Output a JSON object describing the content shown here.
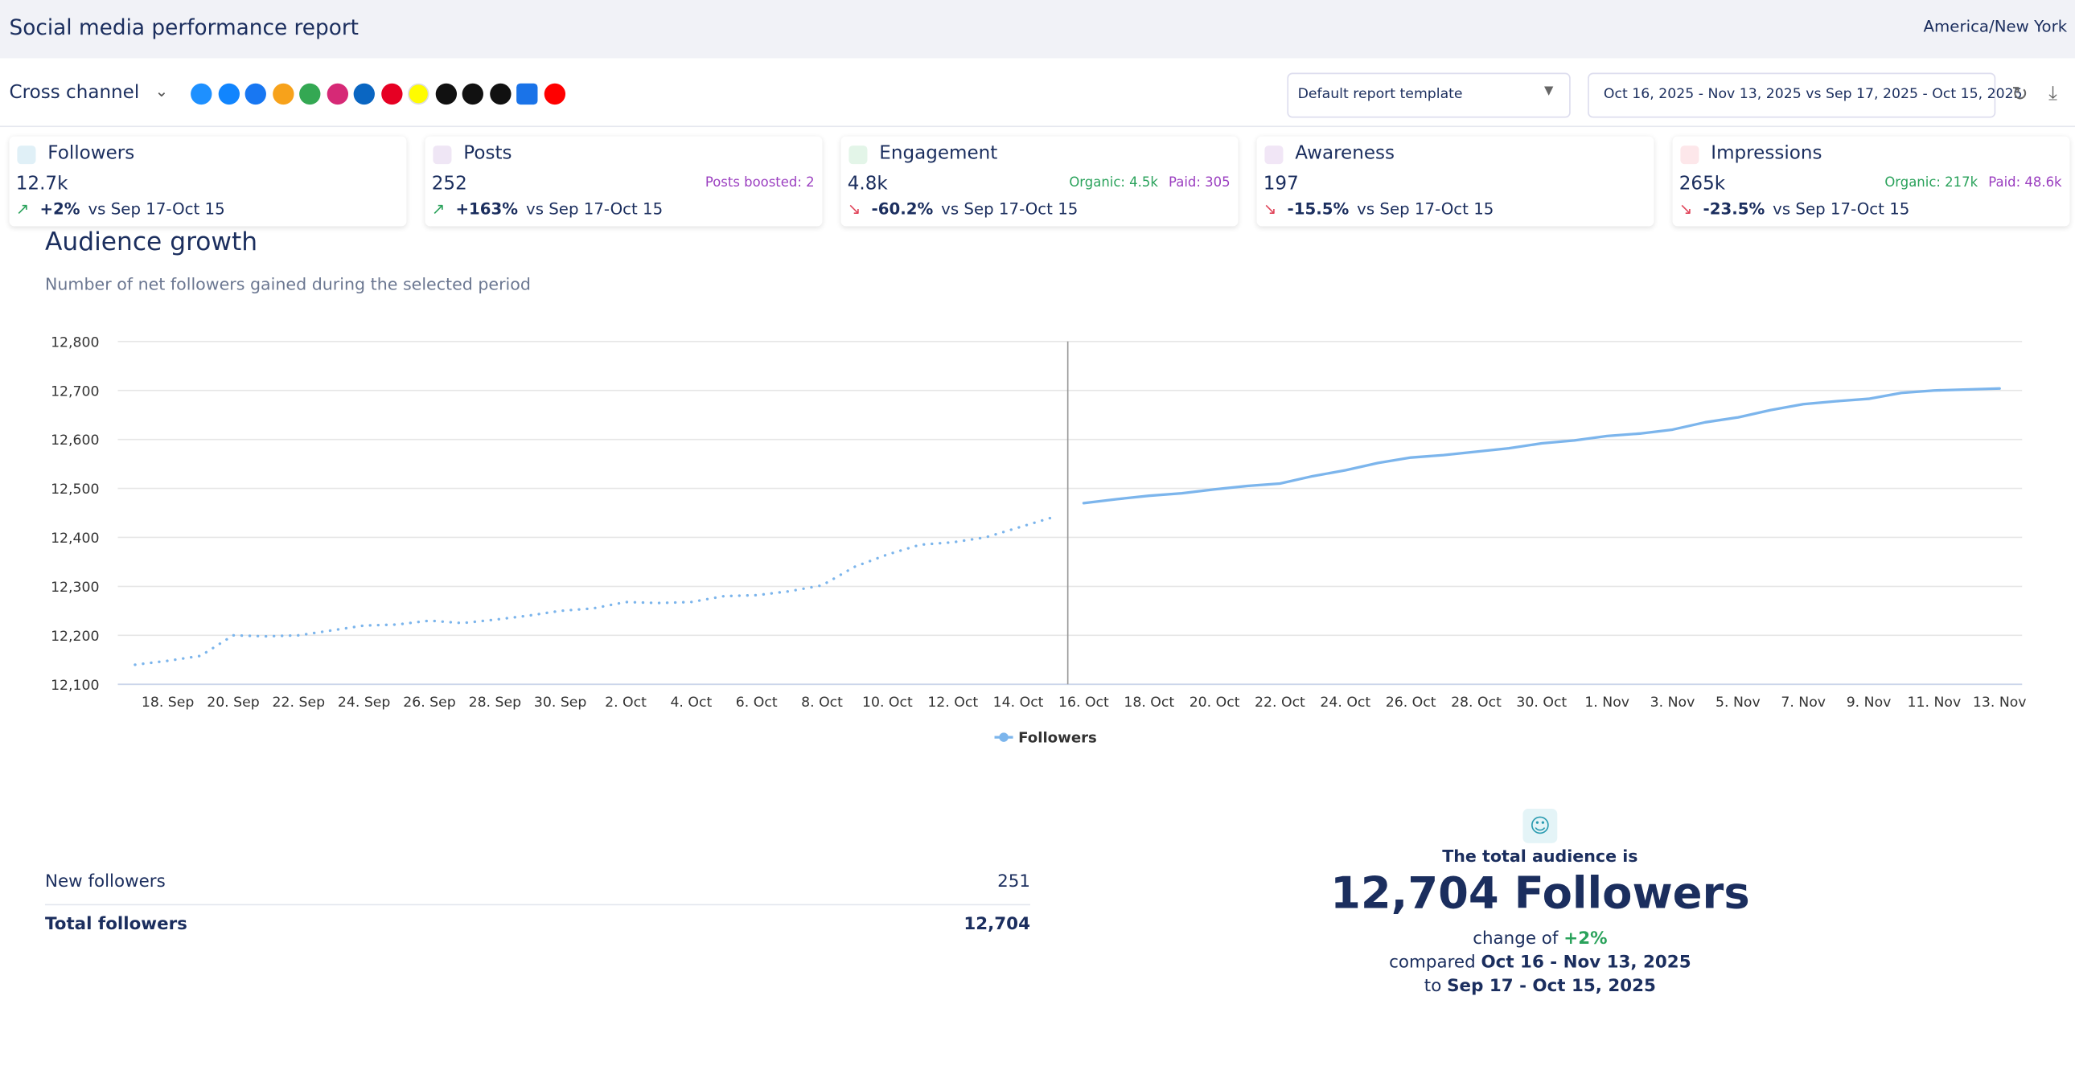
{
  "header": {
    "title": "Social media performance report",
    "timezone": "America/New York"
  },
  "toolbar": {
    "channel": "Cross channel",
    "template": "Default report template",
    "date_range": "Oct 16, 2025 - Nov 13, 2025 vs Sep 17, 2025 - Oct 15, 2025"
  },
  "kpis": [
    {
      "label": "Followers",
      "value": "12.7k",
      "change": "+2%",
      "comparison": "vs Sep 17-Oct 15",
      "extras": []
    },
    {
      "label": "Posts",
      "value": "252",
      "change": "+163%",
      "comparison": "vs Sep 17-Oct 15",
      "extras": [
        "Posts boosted: 2"
      ]
    },
    {
      "label": "Engagement",
      "value": "4.8k",
      "change": "-60.2%",
      "comparison": "vs Sep 17-Oct 15",
      "extras": [
        "Organic: 4.5k",
        "Paid: 305"
      ]
    },
    {
      "label": "Awareness",
      "value": "197",
      "change": "-15.5%",
      "comparison": "vs Sep 17-Oct 15",
      "extras": []
    },
    {
      "label": "Impressions",
      "value": "265k",
      "change": "-23.5%",
      "comparison": "vs Sep 17-Oct 15",
      "extras": [
        "Organic: 217k",
        "Paid: 48.6k"
      ]
    }
  ],
  "chart_data": {
    "type": "line",
    "title": "Audience growth",
    "subtitle": "Number of net followers gained during the selected period",
    "categories": [
      null,
      "18. Sep",
      null,
      "20. Sep",
      null,
      "22. Sep",
      null,
      "24. Sep",
      null,
      "26. Sep",
      null,
      "28. Sep",
      null,
      "30. Sep",
      null,
      "2. Oct",
      null,
      "4. Oct",
      null,
      "6. Oct",
      null,
      "8. Oct",
      null,
      "10. Oct",
      null,
      "12. Oct",
      null,
      "14. Oct",
      null,
      "16. Oct",
      null,
      "18. Oct",
      null,
      "20. Oct",
      null,
      "22. Oct",
      null,
      "24. Oct",
      null,
      "26. Oct",
      null,
      "28. Oct",
      null,
      "30. Oct",
      null,
      "1. Nov",
      null,
      "3. Nov",
      null,
      "5. Nov",
      null,
      "7. Nov",
      null,
      "9. Nov",
      null,
      "11. Nov",
      null,
      "13. Nov"
    ],
    "series": [
      {
        "name": "Followers",
        "color": "#7cb5ec",
        "values": [
          null,
          null,
          null,
          null,
          null,
          null,
          null,
          null,
          null,
          null,
          null,
          null,
          null,
          null,
          null,
          null,
          null,
          null,
          null,
          null,
          null,
          null,
          null,
          null,
          null,
          null,
          null,
          null,
          null,
          12470,
          12478,
          12485,
          12490,
          12498,
          12505,
          12510,
          12525,
          12537,
          12552,
          12563,
          12568,
          12575,
          12582,
          12592,
          12598,
          12607,
          12612,
          12620,
          12635,
          12645,
          12660,
          12672,
          12678,
          12683,
          12695,
          12700,
          12702,
          12704
        ]
      },
      {
        "color": "#7cb5ec",
        "dash": "dotted",
        "values": [
          12140,
          12148,
          12158,
          12200,
          12198,
          12200,
          12210,
          12220,
          12222,
          12230,
          12225,
          12232,
          12240,
          12250,
          12255,
          12268,
          12266,
          12268,
          12280,
          12282,
          12290,
          12302,
          12340,
          12365,
          12385,
          12390,
          12400,
          12420,
          12440,
          null,
          null,
          null,
          null,
          null,
          null,
          null,
          null,
          null,
          null,
          null,
          null,
          null,
          null,
          null,
          null,
          null,
          null,
          null,
          null,
          null,
          null,
          null,
          null,
          null,
          null,
          null,
          null,
          null
        ]
      }
    ],
    "ylim": [
      12100,
      12800
    ],
    "yticks": [
      {
        "value": 12100,
        "label": "12,100"
      },
      {
        "value": 12200,
        "label": "12,200"
      },
      {
        "value": 12300,
        "label": "12,300"
      },
      {
        "value": 12400,
        "label": "12,400"
      },
      {
        "value": 12500,
        "label": "12,500"
      },
      {
        "value": 12600,
        "label": "12,600"
      },
      {
        "value": 12700,
        "label": "12,700"
      },
      {
        "value": 12800,
        "label": "12,800"
      }
    ],
    "grid": true
  },
  "summary": {
    "rows": [
      [
        "New followers",
        "251"
      ],
      [
        "Total followers",
        "12,704"
      ]
    ]
  },
  "total": {
    "intro": "The total audience is",
    "headline": "12,704 Followers",
    "change_prefix": "change of",
    "change": "+2%",
    "compared_prefix": "compared",
    "current": "Oct 16 - Nov 13, 2025",
    "to_prefix": "to",
    "previous": "Sep 17 - Oct 15, 2025"
  }
}
